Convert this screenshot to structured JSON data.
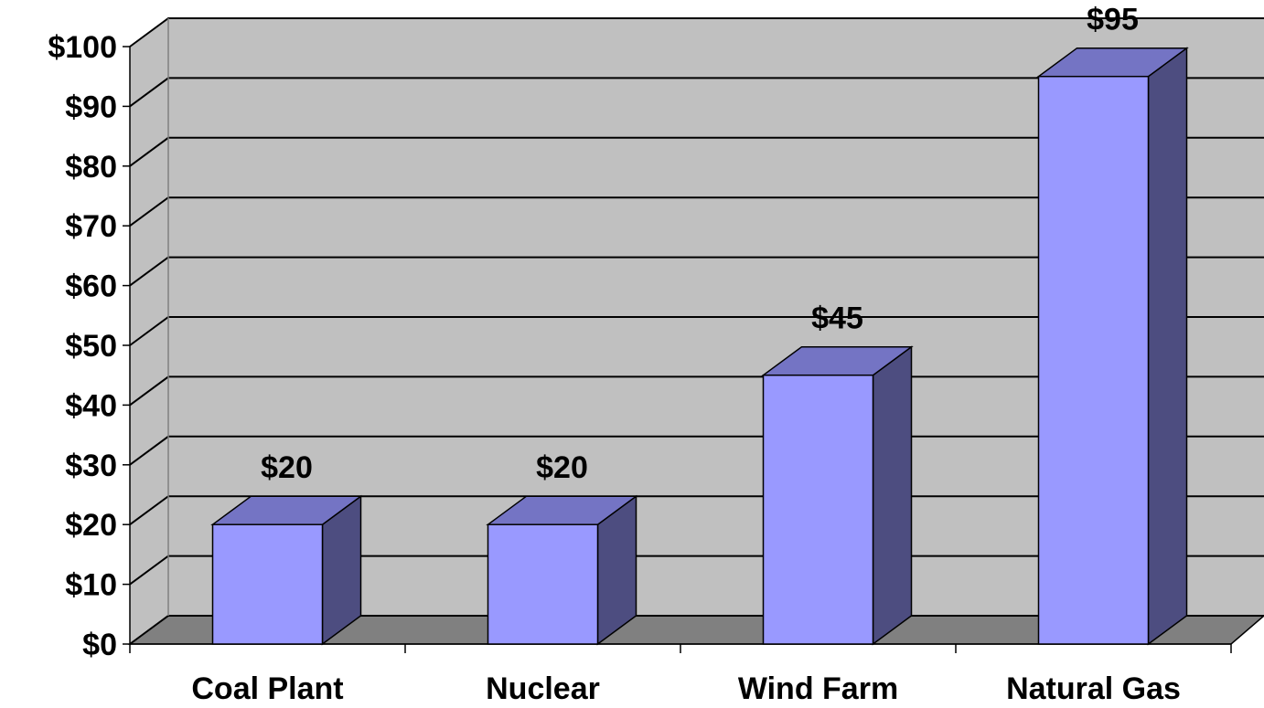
{
  "chart_data": {
    "type": "bar",
    "style": "3d-column",
    "title": "",
    "xlabel": "",
    "ylabel": "",
    "categories": [
      "Coal Plant",
      "Nuclear",
      "Wind Farm",
      "Natural Gas"
    ],
    "series": [
      {
        "values": [
          20,
          20,
          45,
          95
        ],
        "data_labels": [
          "$20",
          "$20",
          "$45",
          "$95"
        ]
      }
    ],
    "ylim": [
      0,
      100
    ],
    "yticks": [
      0,
      10,
      20,
      30,
      40,
      50,
      60,
      70,
      80,
      90,
      100
    ],
    "ytick_labels": [
      "$0",
      "$10",
      "$20",
      "$30",
      "$40",
      "$50",
      "$60",
      "$70",
      "$80",
      "$90",
      "$100"
    ],
    "grid": true,
    "legend": "none",
    "colors": {
      "bar_front": "#9999ff",
      "bar_top": "#7474c4",
      "bar_side": "#4d4d80",
      "wall": "#c0c0c0",
      "floor": "#808080",
      "gridline": "#000000"
    }
  }
}
